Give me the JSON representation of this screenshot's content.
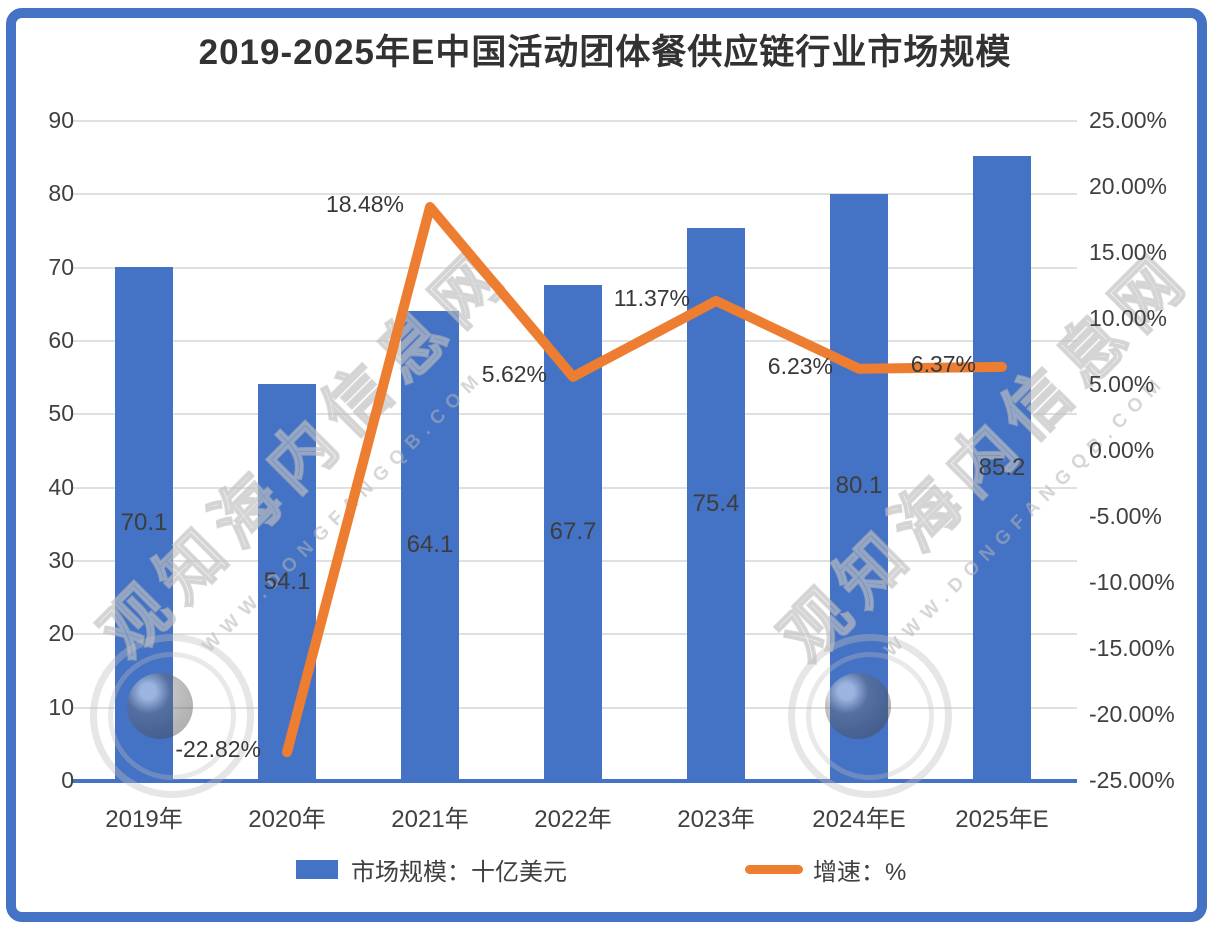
{
  "title": "2019-2025年E中国活动团体餐供应链行业市场规模",
  "watermark": {
    "text": "观知海内信息网",
    "url": "WWW.DONGFANGQB.COM"
  },
  "legend": [
    {
      "label": "市场规模：十亿美元",
      "color": "#4472C4",
      "marker": "bar"
    },
    {
      "label": "增速：%",
      "color": "#ED7D31",
      "marker": "line"
    }
  ],
  "chart_data": {
    "type": "bar",
    "title": "2019-2025年E中国活动团体餐供应链行业市场规模",
    "categories": [
      "2019年",
      "2020年",
      "2021年",
      "2022年",
      "2023年",
      "2024年E",
      "2025年E"
    ],
    "series": [
      {
        "name": "市场规模：十亿美元",
        "type": "bar",
        "axis": "left",
        "color": "#4472C4",
        "values": [
          70.1,
          54.1,
          64.1,
          67.7,
          75.4,
          80.1,
          85.2
        ],
        "labels": [
          "70.1",
          "54.1",
          "64.1",
          "67.7",
          "75.4",
          "80.1",
          "85.2"
        ]
      },
      {
        "name": "增速：%",
        "type": "line",
        "axis": "right",
        "color": "#ED7D31",
        "values": [
          null,
          -22.82,
          18.48,
          5.62,
          11.37,
          6.23,
          6.37
        ],
        "labels": [
          "",
          "-22.82%",
          "18.48%",
          "5.62%",
          "11.37%",
          "6.23%",
          "6.37%"
        ]
      }
    ],
    "left_axis": {
      "min": 0,
      "max": 90,
      "step": 10,
      "ticks": [
        "0",
        "10",
        "20",
        "30",
        "40",
        "50",
        "60",
        "70",
        "80",
        "90"
      ]
    },
    "right_axis": {
      "min": -25,
      "max": 25,
      "step": 5,
      "ticks": [
        "25.00%",
        "20.00%",
        "15.00%",
        "10.00%",
        "5.00%",
        "0.00%",
        "-5.00%",
        "-10.00%",
        "-15.00%",
        "-20.00%",
        "-25.00%"
      ]
    },
    "grid": true,
    "legend_position": "bottom"
  },
  "colors": {
    "bar": "#4472C4",
    "line": "#ED7D31",
    "grid": "#E0E0E0",
    "axis_line": "#4472C4",
    "text": "#404040",
    "title": "#323232",
    "frame": "#4472C4"
  }
}
